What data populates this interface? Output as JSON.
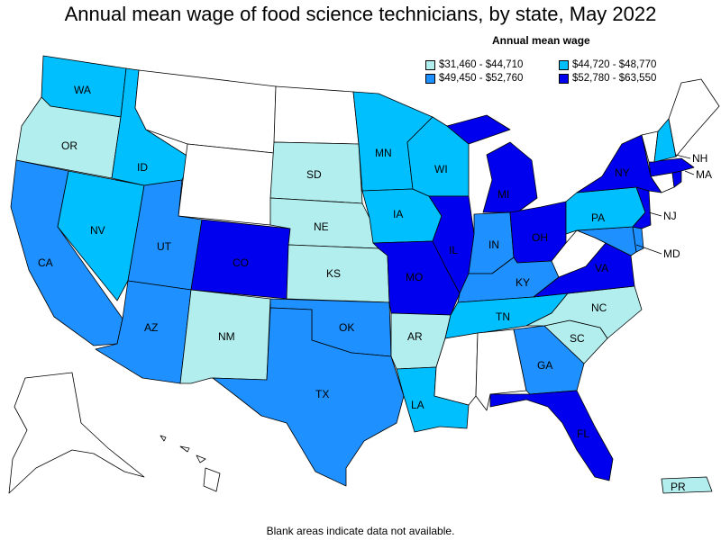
{
  "title": "Annual mean wage of food science technicians, by state, May 2022",
  "legend": {
    "title": "Annual mean wage",
    "items": [
      {
        "label": "$31,460 - $44,710",
        "color": "#b3eeee"
      },
      {
        "label": "$44,720 - $48,770",
        "color": "#00bfff"
      },
      {
        "label": "$49,450 - $52,760",
        "color": "#1e90ff"
      },
      {
        "label": "$52,780 - $63,550",
        "color": "#0000ee"
      }
    ]
  },
  "footer": "Blank areas indicate data not available.",
  "colors": {
    "no_data": "#ffffff",
    "tier1": "#b3eeee",
    "tier2": "#00bfff",
    "tier3": "#1e90ff",
    "tier4": "#0000ee"
  },
  "states": {
    "WA": {
      "label": "WA",
      "tier": 2
    },
    "OR": {
      "label": "OR",
      "tier": 1
    },
    "CA": {
      "label": "CA",
      "tier": 3
    },
    "NV": {
      "label": "NV",
      "tier": 2
    },
    "ID": {
      "label": "ID",
      "tier": 2
    },
    "UT": {
      "label": "UT",
      "tier": 3
    },
    "AZ": {
      "label": "AZ",
      "tier": 3
    },
    "CO": {
      "label": "CO",
      "tier": 4
    },
    "NM": {
      "label": "NM",
      "tier": 1
    },
    "SD": {
      "label": "SD",
      "tier": 1
    },
    "NE": {
      "label": "NE",
      "tier": 1
    },
    "KS": {
      "label": "KS",
      "tier": 1
    },
    "OK": {
      "label": "OK",
      "tier": 3
    },
    "TX": {
      "label": "TX",
      "tier": 3
    },
    "MN": {
      "label": "MN",
      "tier": 2
    },
    "IA": {
      "label": "IA",
      "tier": 2
    },
    "MO": {
      "label": "MO",
      "tier": 4
    },
    "AR": {
      "label": "AR",
      "tier": 1
    },
    "LA": {
      "label": "LA",
      "tier": 2
    },
    "WI": {
      "label": "WI",
      "tier": 2
    },
    "IL": {
      "label": "IL",
      "tier": 4
    },
    "MI": {
      "label": "MI",
      "tier": 4
    },
    "IN": {
      "label": "IN",
      "tier": 3
    },
    "OH": {
      "label": "OH",
      "tier": 4
    },
    "KY": {
      "label": "KY",
      "tier": 3
    },
    "TN": {
      "label": "TN",
      "tier": 2
    },
    "GA": {
      "label": "GA",
      "tier": 3
    },
    "FL": {
      "label": "FL",
      "tier": 4
    },
    "SC": {
      "label": "SC",
      "tier": 1
    },
    "NC": {
      "label": "NC",
      "tier": 1
    },
    "VA": {
      "label": "VA",
      "tier": 4
    },
    "PA": {
      "label": "PA",
      "tier": 2
    },
    "NY": {
      "label": "NY",
      "tier": 4
    },
    "NJ": {
      "label": "NJ",
      "tier": 4
    },
    "MD": {
      "label": "MD",
      "tier": 3
    },
    "NH": {
      "label": "NH",
      "tier": 2
    },
    "MA": {
      "label": "MA",
      "tier": 4
    },
    "PR": {
      "label": "PR",
      "tier": 1
    },
    "MT": {
      "tier": 0
    },
    "WY": {
      "tier": 0
    },
    "ND": {
      "tier": 0
    },
    "MS": {
      "tier": 0
    },
    "AL": {
      "tier": 0
    },
    "WV": {
      "tier": 0
    },
    "DE": {
      "tier": 3
    },
    "CT": {
      "tier": 0
    },
    "RI": {
      "tier": 4
    },
    "VT": {
      "tier": 0
    },
    "ME": {
      "tier": 0
    },
    "AK": {
      "tier": 0
    },
    "HI": {
      "tier": 0
    }
  }
}
